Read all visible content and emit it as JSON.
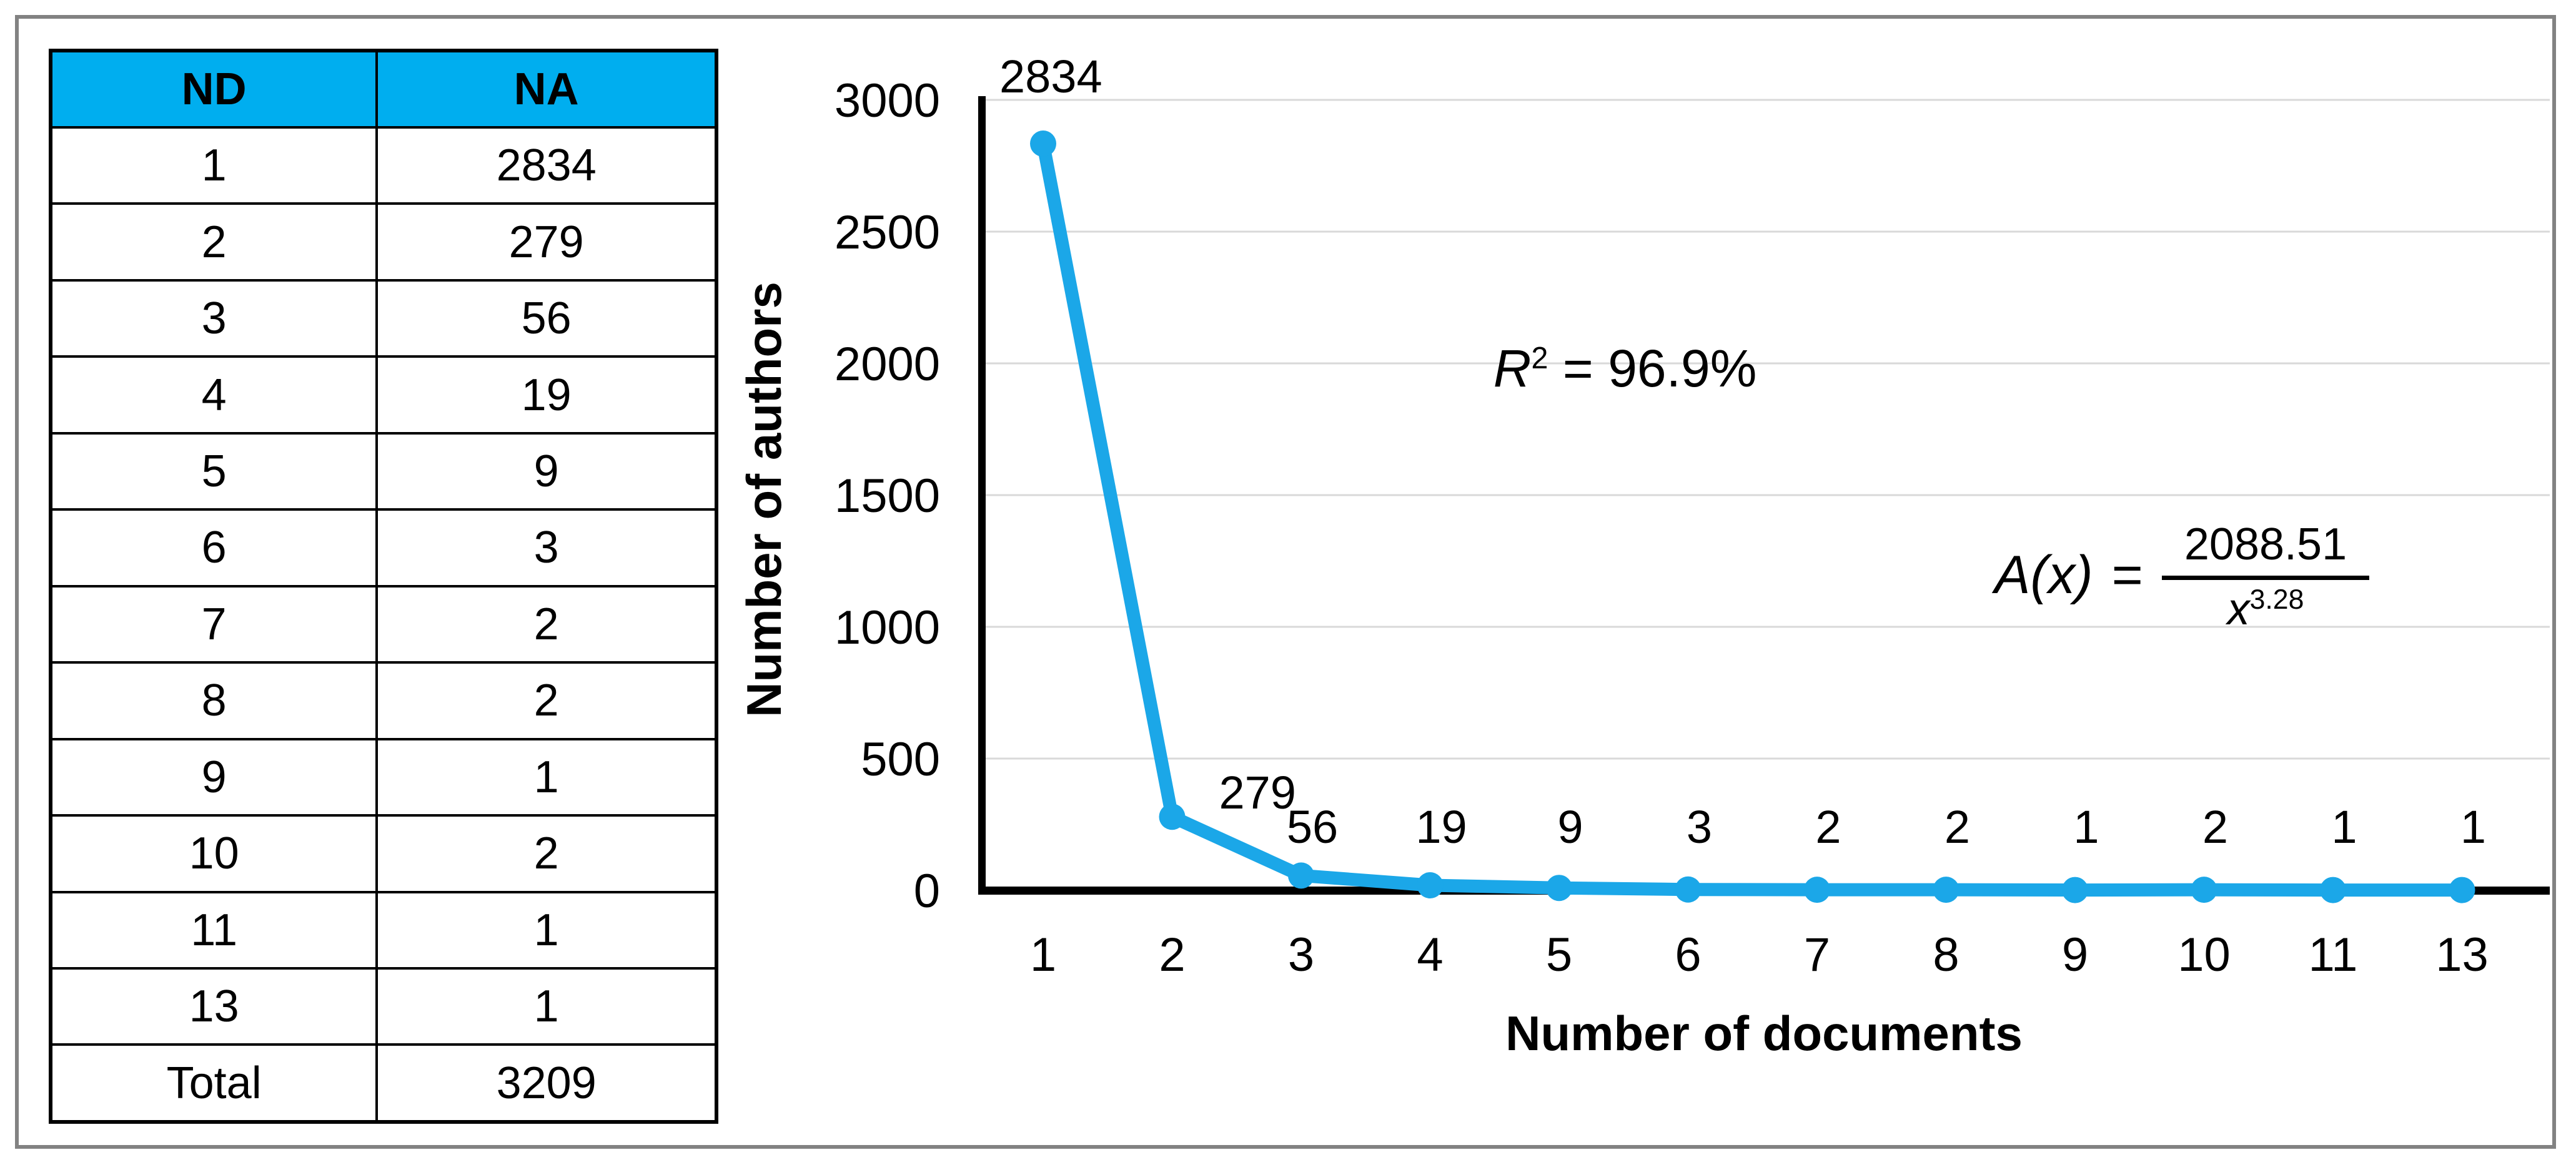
{
  "figure": {
    "frame_color": "#828282",
    "background": "#FFFFFF"
  },
  "table": {
    "columns": [
      "ND",
      "NA"
    ],
    "header_fill": "#00AEEF",
    "rows": [
      [
        "1",
        "2834"
      ],
      [
        "2",
        "279"
      ],
      [
        "3",
        "56"
      ],
      [
        "4",
        "19"
      ],
      [
        "5",
        "9"
      ],
      [
        "6",
        "3"
      ],
      [
        "7",
        "2"
      ],
      [
        "8",
        "2"
      ],
      [
        "9",
        "1"
      ],
      [
        "10",
        "2"
      ],
      [
        "11",
        "1"
      ],
      [
        "13",
        "1"
      ]
    ],
    "total": {
      "label": "Total",
      "value": "3209"
    }
  },
  "chart_data": {
    "type": "line",
    "title": "",
    "xlabel": "Number of documents",
    "ylabel": "Number of authors",
    "categories": [
      "1",
      "2",
      "3",
      "4",
      "5",
      "6",
      "7",
      "8",
      "9",
      "10",
      "11",
      "13"
    ],
    "values": [
      2834,
      279,
      56,
      19,
      9,
      3,
      2,
      2,
      1,
      2,
      1,
      1
    ],
    "data_labels": [
      "2834",
      "279",
      "56",
      "19",
      "9",
      "3",
      "2",
      "2",
      "1",
      "2",
      "1",
      "1"
    ],
    "yticks": [
      0,
      500,
      1000,
      1500,
      2000,
      2500,
      3000
    ],
    "ylim": [
      0,
      3000
    ],
    "grid": true,
    "legend_position": "none",
    "line_color": "#1BA7E8",
    "marker_color": "#1BA7E8",
    "grid_color": "#D9D9D9",
    "axis_color": "#000000",
    "annotations": {
      "r2": {
        "base": "R",
        "sup": "2",
        "rest": " = 96.9%"
      },
      "fit": {
        "func": "A(x)",
        "eq": "=",
        "numerator": "2088.51",
        "den_base": "x",
        "den_exp": "3.28"
      }
    }
  }
}
